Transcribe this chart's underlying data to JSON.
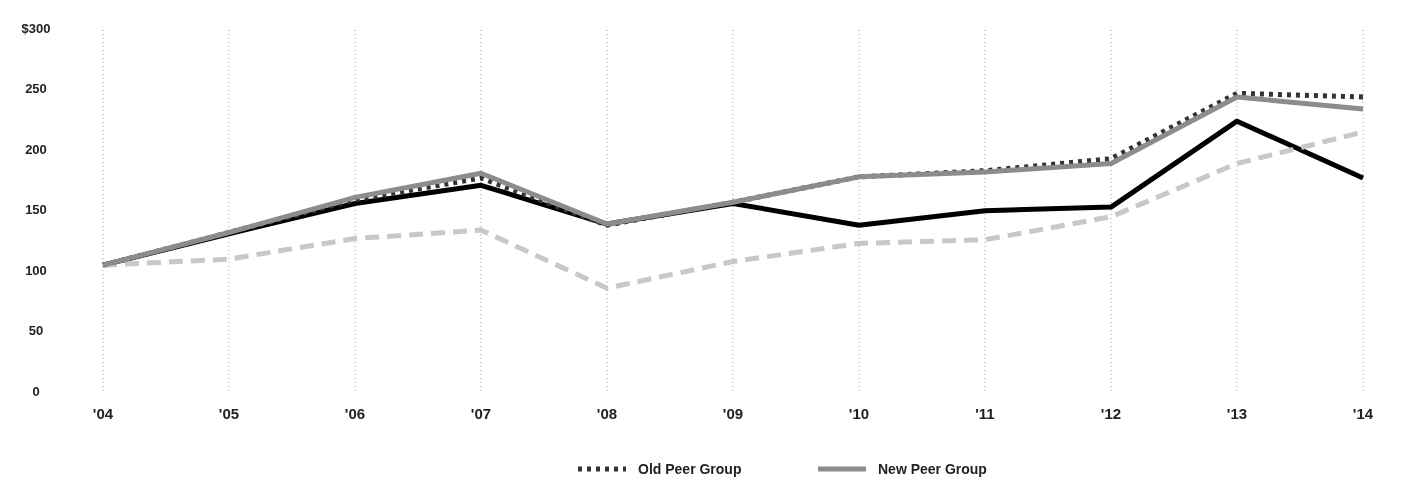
{
  "chart_data": {
    "type": "line",
    "categories": [
      "'04",
      "'05",
      "'06",
      "'07",
      "'08",
      "'09",
      "'10",
      "'11",
      "'12",
      "'13",
      "'14"
    ],
    "ylim": [
      0,
      300
    ],
    "yticks": [
      0,
      50,
      100,
      150,
      200,
      250,
      {
        "value": 300,
        "label": "$300"
      }
    ],
    "grid": "x",
    "legend": "bottom",
    "marker": "none",
    "series": [
      {
        "color": "#000000",
        "line_style": "solid",
        "values": [
          104,
          130,
          155,
          170,
          138,
          155,
          137,
          149,
          152,
          223,
          176
        ]
      },
      {
        "color": "#c8c8c8",
        "line_style": "dashed",
        "values": [
          104,
          109,
          126,
          133,
          85,
          107,
          122,
          125,
          144,
          188,
          214
        ]
      },
      {
        "name": "Old Peer Group",
        "color": "#333333",
        "line_style": "dotted",
        "values": [
          104,
          131,
          158,
          176,
          137,
          156,
          177,
          182,
          192,
          246,
          243
        ]
      },
      {
        "name": "New Peer Group",
        "color": "#8c8c8c",
        "line_style": "solid",
        "values": [
          104,
          131,
          160,
          180,
          138,
          156,
          177,
          181,
          188,
          243,
          233
        ]
      }
    ]
  }
}
